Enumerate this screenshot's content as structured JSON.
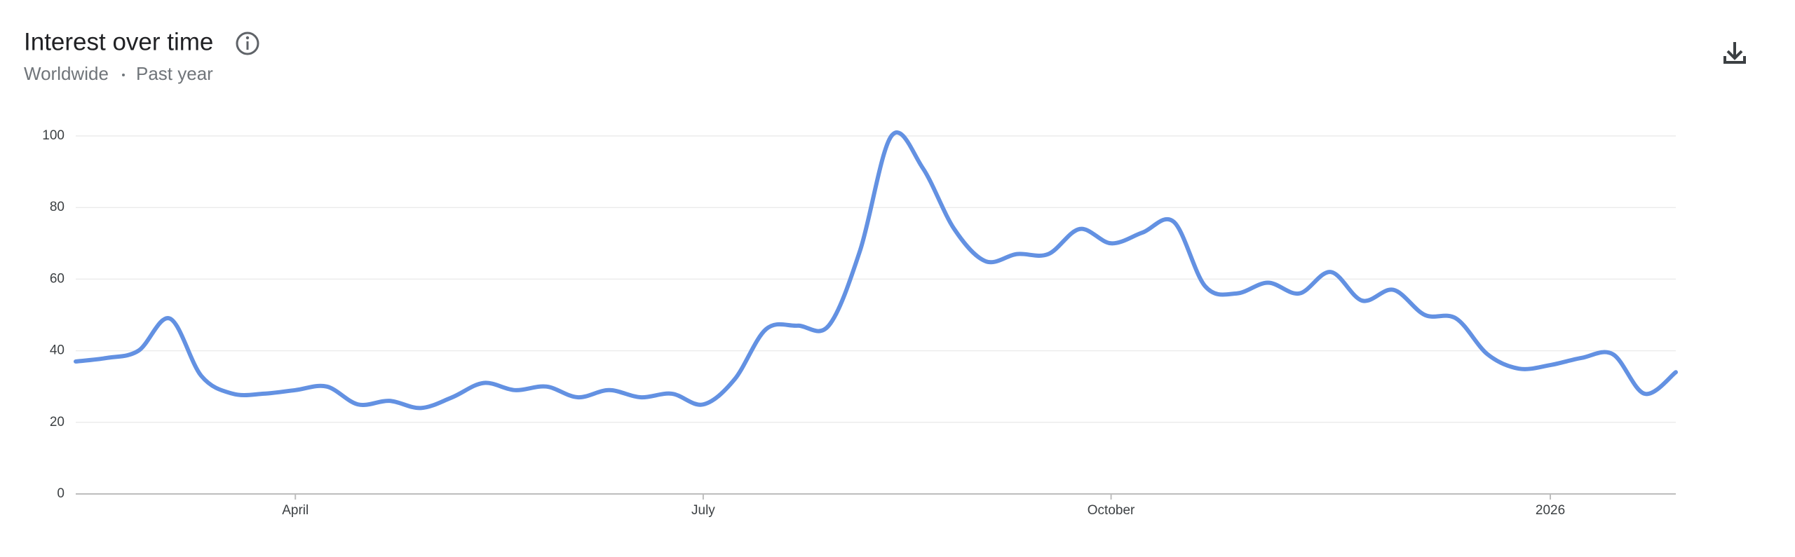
{
  "chart_data": {
    "type": "line",
    "title": "Interest over time",
    "location": "Worldwide",
    "period": "Past year",
    "categories": [
      null,
      null,
      null,
      null,
      null,
      null,
      null,
      "April",
      null,
      null,
      null,
      null,
      null,
      null,
      null,
      null,
      null,
      null,
      null,
      null,
      "July",
      null,
      null,
      null,
      null,
      null,
      null,
      null,
      null,
      null,
      null,
      null,
      null,
      "October",
      null,
      null,
      null,
      null,
      null,
      null,
      null,
      null,
      null,
      null,
      null,
      null,
      null,
      "2026",
      null,
      null,
      null,
      null
    ],
    "series": [
      {
        "name": "Interest",
        "color": "#6391e2",
        "values": [
          37,
          38,
          40,
          49,
          33,
          28,
          28,
          29,
          30,
          25,
          26,
          24,
          27,
          31,
          29,
          30,
          27,
          29,
          27,
          28,
          25,
          32,
          46,
          47,
          47,
          68,
          100,
          91,
          74,
          65,
          67,
          67,
          74,
          70,
          73,
          76,
          58,
          56,
          59,
          56,
          62,
          54,
          57,
          50,
          49,
          39,
          35,
          36,
          38,
          39,
          28,
          34
        ]
      }
    ],
    "ylim": [
      0,
      100
    ],
    "yticks": [
      0,
      20,
      40,
      60,
      80,
      100
    ],
    "grid": true
  }
}
